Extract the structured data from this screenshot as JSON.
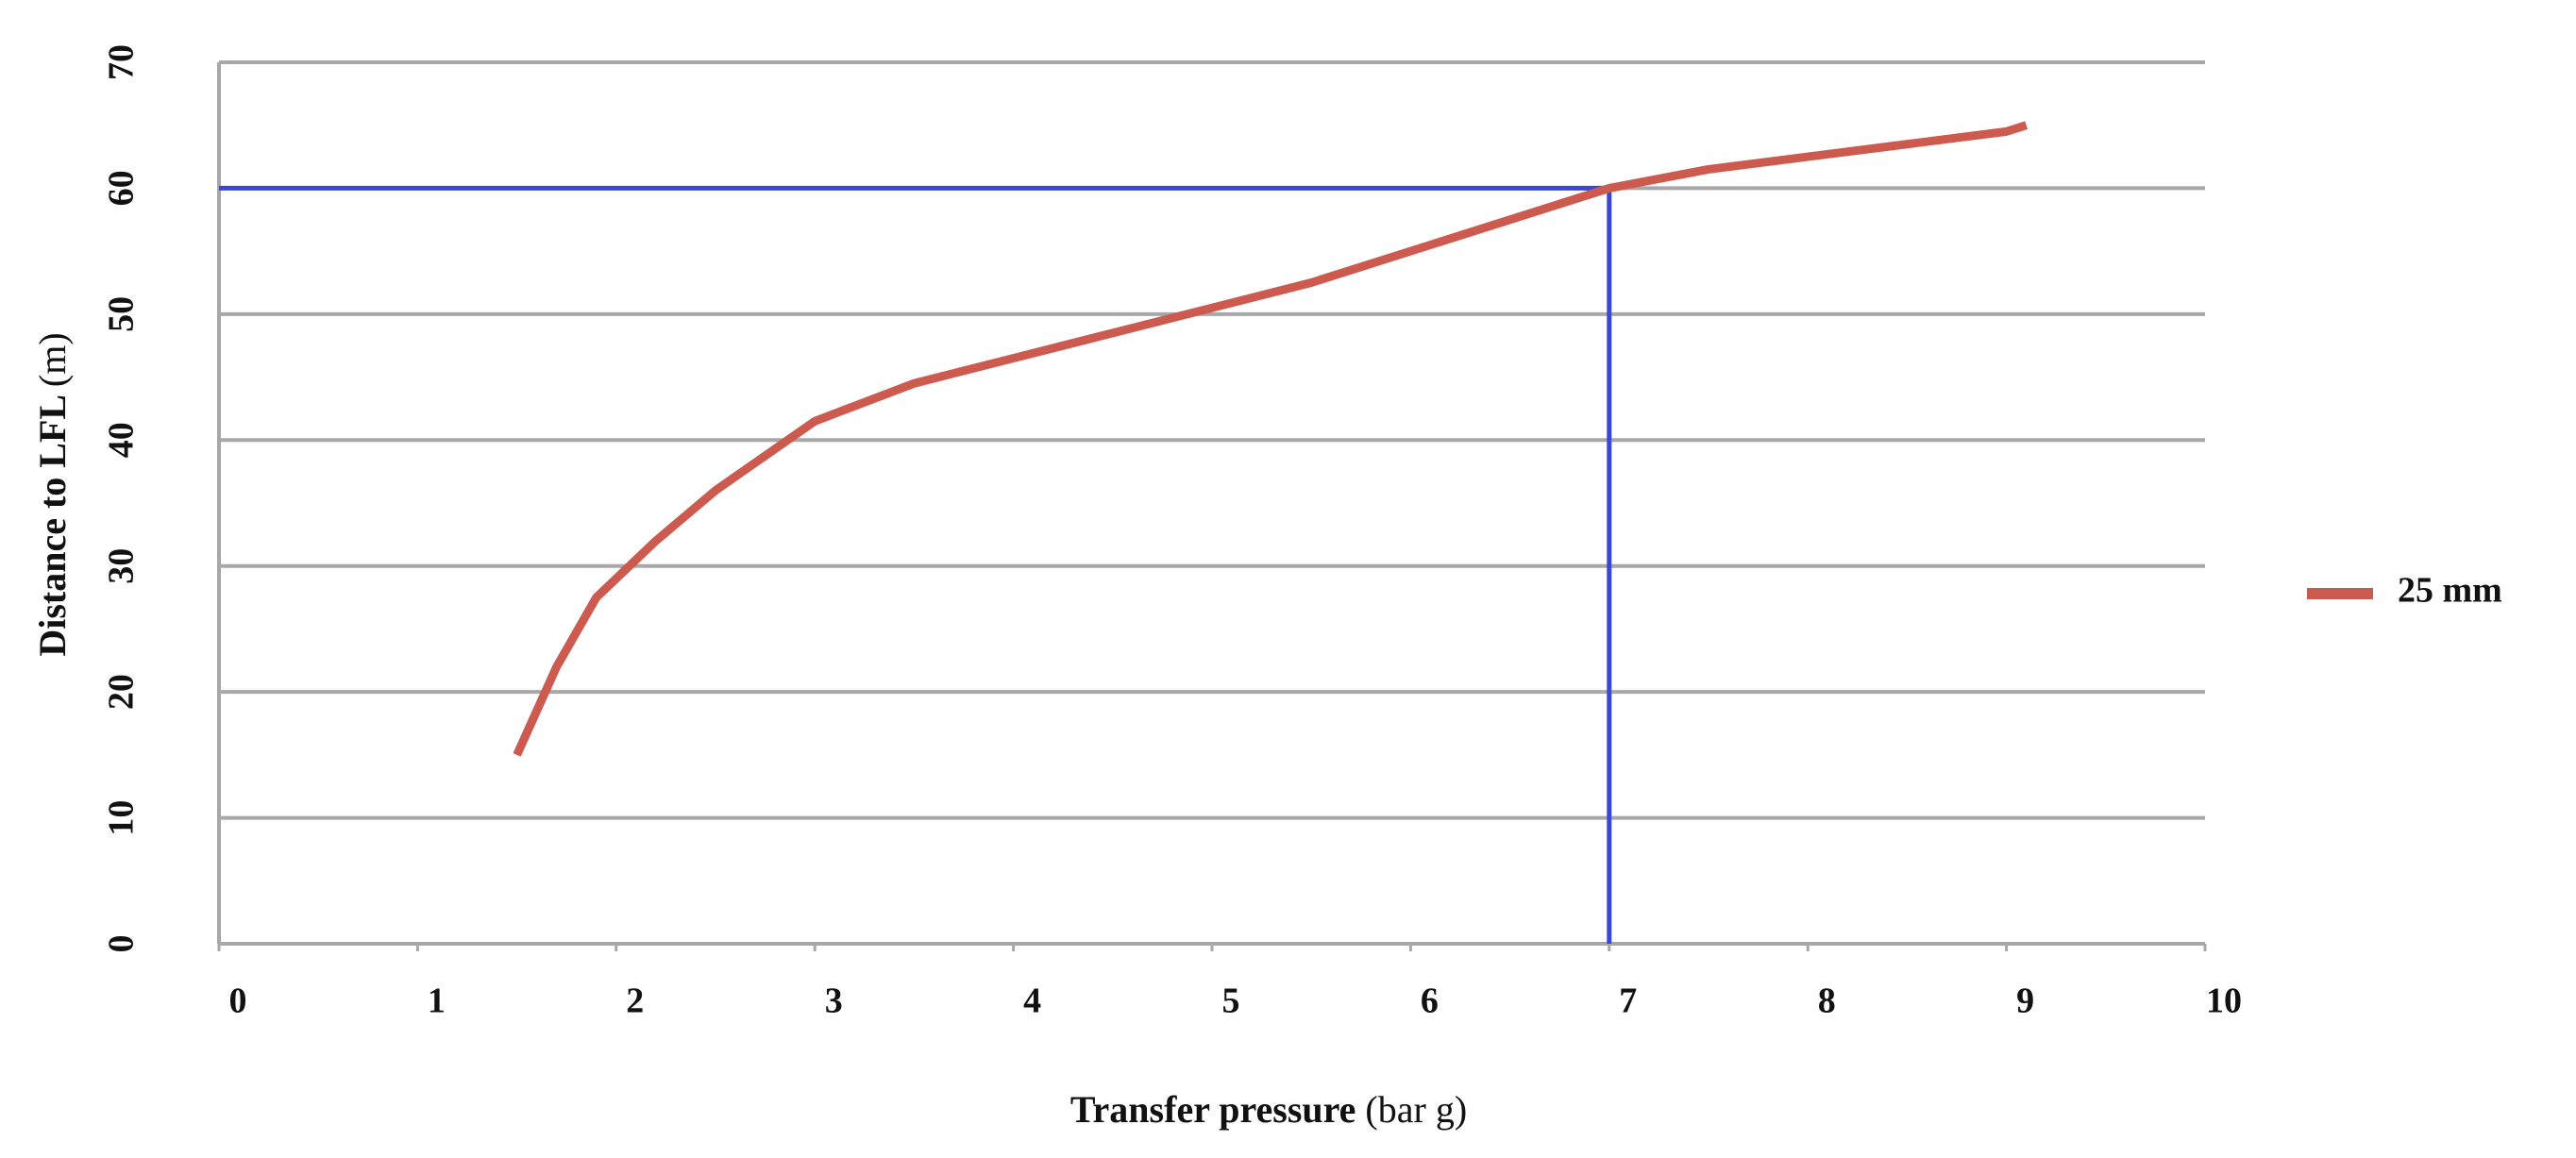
{
  "chart_data": {
    "type": "line",
    "y_label": "Distance to LFL",
    "y_label_unit": "(m)",
    "x_label": "Transfer pressure",
    "x_label_unit": "(bar g)",
    "x": [
      1.5,
      1.7,
      1.9,
      2.2,
      2.5,
      3,
      3.5,
      4,
      4.5,
      5,
      5.5,
      6,
      6.5,
      7,
      7.5,
      8,
      8.5,
      9,
      9.1
    ],
    "series": [
      {
        "name": "25 mm",
        "color": "#cc5a4e",
        "values": [
          15,
          22,
          27.5,
          32,
          36,
          41.5,
          44.5,
          46.5,
          48.5,
          50.5,
          52.5,
          55,
          57.5,
          60,
          61.5,
          62.5,
          63.5,
          64.5,
          65
        ]
      }
    ],
    "reference": {
      "x": 7,
      "y": 60,
      "color": "#3a46d6"
    },
    "xlim": [
      0,
      10
    ],
    "xticks": [
      0,
      1,
      2,
      3,
      4,
      5,
      6,
      7,
      8,
      9,
      10
    ],
    "ylim": [
      0,
      70
    ],
    "yticks": [
      0,
      10,
      20,
      30,
      40,
      50,
      60,
      70
    ],
    "grid": true,
    "legend": "right"
  }
}
